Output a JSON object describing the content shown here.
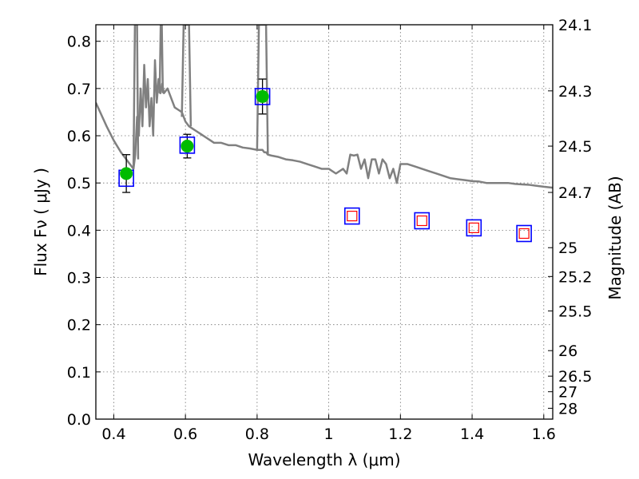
{
  "chart_data": {
    "type": "scatter",
    "title": "",
    "xlabel": "Wavelength  λ (μm)",
    "ylabel": "Flux  Fν  ( μJy )",
    "y2label": "Magnitude (AB)",
    "xlim": [
      0.35,
      1.625
    ],
    "ylim": [
      0.0,
      0.835
    ],
    "grid": true,
    "x_ticks": [
      "0.4",
      "0.6",
      "0.8",
      "1",
      "1.2",
      "1.4",
      "1.6"
    ],
    "y_ticks": [
      "0.0",
      "0.1",
      "0.2",
      "0.3",
      "0.4",
      "0.5",
      "0.6",
      "0.7",
      "0.8"
    ],
    "y2_ticks": [
      {
        "label": "24.1",
        "flux": 0.835
      },
      {
        "label": "24.3",
        "flux": 0.695
      },
      {
        "label": "24.5",
        "flux": 0.578
      },
      {
        "label": "24.7",
        "flux": 0.48
      },
      {
        "label": "25",
        "flux": 0.363
      },
      {
        "label": "25.2",
        "flux": 0.302
      },
      {
        "label": "25.5",
        "flux": 0.229
      },
      {
        "label": "26",
        "flux": 0.145
      },
      {
        "label": "26.5",
        "flux": 0.091
      },
      {
        "label": "27",
        "flux": 0.058
      },
      {
        "label": "28",
        "flux": 0.023
      }
    ],
    "series": [
      {
        "kind": "line",
        "color": "#808080",
        "x": [
          0.35,
          0.38,
          0.4,
          0.42,
          0.44,
          0.455,
          0.46,
          0.465,
          0.47,
          0.475,
          0.48,
          0.485,
          0.49,
          0.495,
          0.5,
          0.505,
          0.51,
          0.515,
          0.52,
          0.525,
          0.53,
          0.535,
          0.54,
          0.55,
          0.56,
          0.57,
          0.58,
          0.59,
          0.595,
          0.6,
          0.605,
          0.61,
          0.62,
          0.63,
          0.64,
          0.65,
          0.66,
          0.67,
          0.68,
          0.7,
          0.72,
          0.74,
          0.76,
          0.78,
          0.8,
          0.805,
          0.81,
          0.815,
          0.82,
          0.825,
          0.83,
          0.84,
          0.86,
          0.88,
          0.9,
          0.92,
          0.94,
          0.96,
          0.98,
          1.0,
          1.02,
          1.04,
          1.05,
          1.06,
          1.07,
          1.08,
          1.09,
          1.1,
          1.11,
          1.12,
          1.13,
          1.14,
          1.15,
          1.16,
          1.17,
          1.18,
          1.19,
          1.2,
          1.22,
          1.24,
          1.26,
          1.28,
          1.3,
          1.32,
          1.34,
          1.36,
          1.38,
          1.4,
          1.42,
          1.44,
          1.46,
          1.48,
          1.5,
          1.52,
          1.54,
          1.56,
          1.58,
          1.6,
          1.625
        ],
        "y": [
          0.67,
          0.62,
          0.59,
          0.565,
          0.545,
          0.53,
          0.56,
          0.64,
          0.6,
          0.7,
          0.62,
          0.75,
          0.66,
          0.72,
          0.62,
          0.68,
          0.6,
          0.76,
          0.67,
          0.72,
          0.69,
          0.71,
          0.69,
          0.7,
          0.68,
          0.66,
          0.655,
          0.65,
          0.64,
          0.63,
          0.625,
          0.62,
          0.615,
          0.61,
          0.605,
          0.6,
          0.595,
          0.59,
          0.585,
          0.585,
          0.58,
          0.58,
          0.575,
          0.573,
          0.57,
          0.57,
          0.57,
          0.57,
          0.565,
          0.565,
          0.56,
          0.558,
          0.555,
          0.55,
          0.548,
          0.545,
          0.54,
          0.535,
          0.53,
          0.53,
          0.52,
          0.53,
          0.52,
          0.56,
          0.558,
          0.56,
          0.53,
          0.55,
          0.51,
          0.55,
          0.55,
          0.52,
          0.55,
          0.54,
          0.51,
          0.53,
          0.5,
          0.54,
          0.54,
          0.535,
          0.53,
          0.525,
          0.52,
          0.515,
          0.51,
          0.508,
          0.506,
          0.504,
          0.503,
          0.5,
          0.5,
          0.5,
          0.5,
          0.498,
          0.497,
          0.496,
          0.494,
          0.492,
          0.49
        ]
      },
      {
        "kind": "line",
        "color": "#808080",
        "x": [
          0.455,
          0.459,
          0.462,
          0.465,
          0.468
        ],
        "y": [
          0.53,
          0.835,
          0.835,
          0.835,
          0.55
        ]
      },
      {
        "kind": "line",
        "color": "#808080",
        "x": [
          0.528,
          0.531,
          0.534,
          0.537
        ],
        "y": [
          0.69,
          0.835,
          0.835,
          0.69
        ]
      },
      {
        "kind": "line",
        "color": "#808080",
        "x": [
          0.59,
          0.595,
          0.6,
          0.605,
          0.61,
          0.615
        ],
        "y": [
          0.64,
          0.835,
          0.835,
          0.835,
          0.835,
          0.62
        ]
      },
      {
        "kind": "line",
        "color": "#808080",
        "x": [
          0.8,
          0.805,
          0.81,
          0.815,
          0.82,
          0.825,
          0.83
        ],
        "y": [
          0.57,
          0.835,
          0.835,
          0.835,
          0.835,
          0.835,
          0.56
        ]
      },
      {
        "kind": "squares",
        "stroke": "#0000ff",
        "x": [
          0.435,
          0.605,
          0.815,
          1.065,
          1.26,
          1.405,
          1.545
        ],
        "y": [
          0.51,
          0.58,
          0.683,
          0.43,
          0.42,
          0.405,
          0.393
        ]
      },
      {
        "kind": "squares",
        "stroke": "#ff0000",
        "x": [
          1.065,
          1.26,
          1.405,
          1.545
        ],
        "y": [
          0.43,
          0.42,
          0.405,
          0.393
        ]
      },
      {
        "kind": "points",
        "color": "#00bb00",
        "x": [
          0.435,
          0.605,
          0.815
        ],
        "y": [
          0.52,
          0.578,
          0.683
        ],
        "yerr": [
          0.04,
          0.025,
          0.037
        ]
      }
    ]
  }
}
